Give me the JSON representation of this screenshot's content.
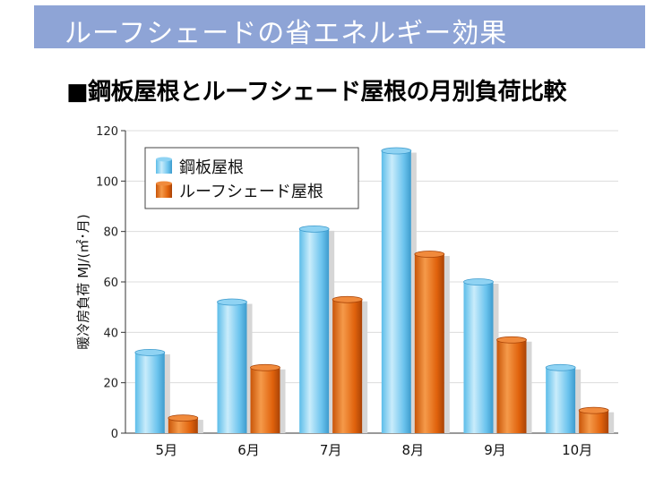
{
  "banner": {
    "title": "ルーフシェードの省エネルギー効果"
  },
  "chart_data": {
    "type": "bar",
    "title": "■鋼板屋根とルーフシェード屋根の月別負荷比較",
    "xlabel": "",
    "ylabel": "暖冷房負荷 MJ/(㎡･月)",
    "ylim": [
      0,
      120
    ],
    "yticks": [
      0,
      20,
      40,
      60,
      80,
      100,
      120
    ],
    "grid": true,
    "legend_position": "top-left",
    "categories": [
      "5月",
      "6月",
      "7月",
      "8月",
      "9月",
      "10月"
    ],
    "series": [
      {
        "name": "鋼板屋根",
        "color": "#5cbde9",
        "values": [
          32,
          52,
          81,
          112,
          60,
          26
        ]
      },
      {
        "name": "ルーフシェード屋根",
        "color": "#e0620c",
        "values": [
          6,
          26,
          53,
          71,
          37,
          9
        ]
      }
    ]
  }
}
